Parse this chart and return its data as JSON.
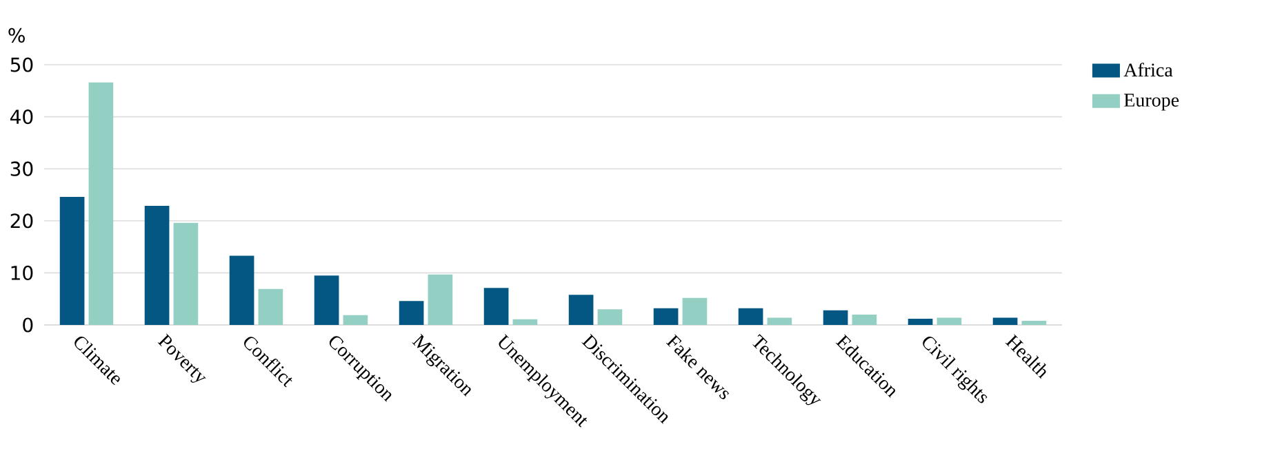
{
  "chart_data": {
    "type": "bar",
    "ylabel": "%",
    "categories": [
      "Climate",
      "Poverty",
      "Conflict",
      "Corruption",
      "Migration",
      "Unemployment",
      "Discrimination",
      "Fake news",
      "Technology",
      "Education",
      "Civil rights",
      "Health"
    ],
    "series": [
      {
        "name": "Africa",
        "color": "#035782",
        "values": [
          24.6,
          22.9,
          13.3,
          9.5,
          4.6,
          7.1,
          5.8,
          3.2,
          3.2,
          2.8,
          1.2,
          1.4
        ]
      },
      {
        "name": "Europe",
        "color": "#94cfc4",
        "values": [
          46.6,
          19.6,
          6.9,
          1.9,
          9.7,
          1.1,
          3.0,
          5.2,
          1.4,
          2.0,
          1.4,
          0.8
        ]
      }
    ],
    "ylim": [
      0,
      50
    ],
    "yticks": [
      0,
      10,
      20,
      30,
      40,
      50
    ],
    "grid": "y",
    "legend": "top right"
  }
}
